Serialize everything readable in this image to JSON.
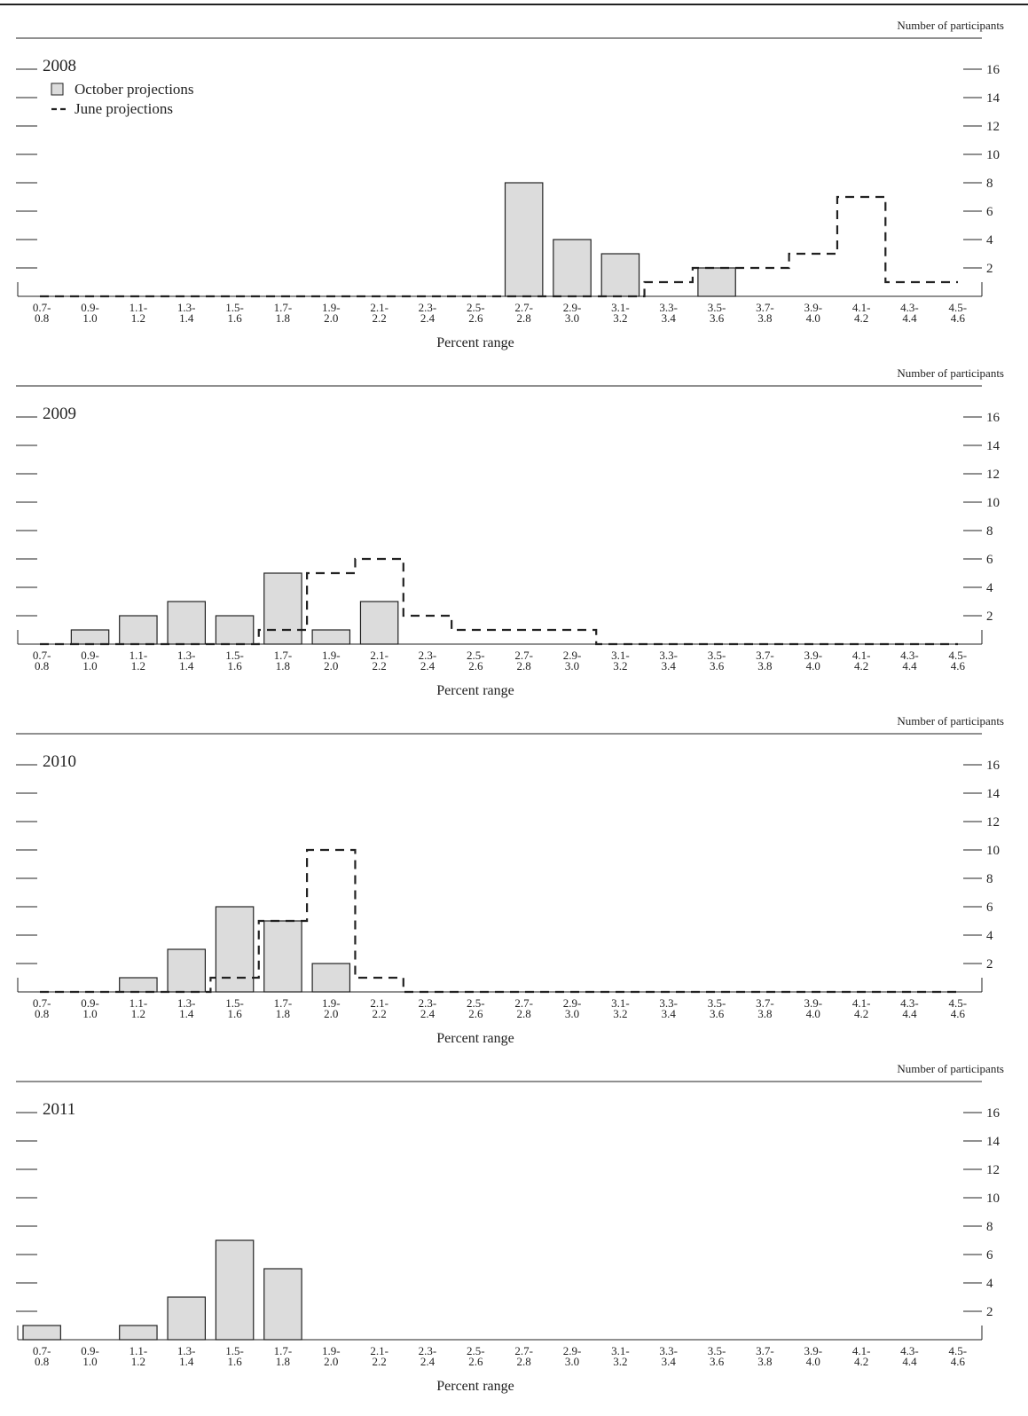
{
  "page": {
    "panel_header": "Number of participants",
    "legend": {
      "october": "October projections",
      "june": "June projections"
    }
  },
  "colors": {
    "bar_fill": "#dcdcdc",
    "bar_stroke": "#222222",
    "line": "#222222"
  },
  "chart_data": [
    {
      "type": "bar",
      "title": "2008",
      "xlabel": "Percent range",
      "ylabel": "Number of participants",
      "ylim": [
        0,
        16
      ],
      "yticks": [
        2,
        4,
        6,
        8,
        10,
        12,
        14,
        16
      ],
      "categories": [
        "0.7-0.8",
        "0.9-1.0",
        "1.1-1.2",
        "1.3-1.4",
        "1.5-1.6",
        "1.7-1.8",
        "1.9-2.0",
        "2.1-2.2",
        "2.3-2.4",
        "2.5-2.6",
        "2.7-2.8",
        "2.9-3.0",
        "3.1-3.2",
        "3.3-3.4",
        "3.5-3.6",
        "3.7-3.8",
        "3.9-4.0",
        "4.1-4.2",
        "4.3-4.4",
        "4.5-4.6"
      ],
      "series": [
        {
          "name": "October projections",
          "style": "bar",
          "values": [
            0,
            0,
            0,
            0,
            0,
            0,
            0,
            0,
            0,
            0,
            8,
            4,
            3,
            0,
            2,
            0,
            0,
            0,
            0,
            0
          ]
        },
        {
          "name": "June projections",
          "style": "dashed-step",
          "values": [
            0,
            0,
            0,
            0,
            0,
            0,
            0,
            0,
            0,
            0,
            0,
            0,
            0,
            1,
            2,
            2,
            3,
            7,
            1,
            1
          ]
        }
      ],
      "legend": "top-left"
    },
    {
      "type": "bar",
      "title": "2009",
      "xlabel": "Percent range",
      "ylabel": "Number of participants",
      "ylim": [
        0,
        16
      ],
      "yticks": [
        2,
        4,
        6,
        8,
        10,
        12,
        14,
        16
      ],
      "categories": [
        "0.7-0.8",
        "0.9-1.0",
        "1.1-1.2",
        "1.3-1.4",
        "1.5-1.6",
        "1.7-1.8",
        "1.9-2.0",
        "2.1-2.2",
        "2.3-2.4",
        "2.5-2.6",
        "2.7-2.8",
        "2.9-3.0",
        "3.1-3.2",
        "3.3-3.4",
        "3.5-3.6",
        "3.7-3.8",
        "3.9-4.0",
        "4.1-4.2",
        "4.3-4.4",
        "4.5-4.6"
      ],
      "series": [
        {
          "name": "October projections",
          "style": "bar",
          "values": [
            0,
            1,
            2,
            3,
            2,
            5,
            1,
            3,
            0,
            0,
            0,
            0,
            0,
            0,
            0,
            0,
            0,
            0,
            0,
            0
          ]
        },
        {
          "name": "June projections",
          "style": "dashed-step",
          "values": [
            0,
            0,
            0,
            0,
            0,
            1,
            5,
            6,
            2,
            1,
            1,
            1,
            0,
            0,
            0,
            0,
            0,
            0,
            0,
            0
          ]
        }
      ]
    },
    {
      "type": "bar",
      "title": "2010",
      "xlabel": "Percent range",
      "ylabel": "Number of participants",
      "ylim": [
        0,
        16
      ],
      "yticks": [
        2,
        4,
        6,
        8,
        10,
        12,
        14,
        16
      ],
      "categories": [
        "0.7-0.8",
        "0.9-1.0",
        "1.1-1.2",
        "1.3-1.4",
        "1.5-1.6",
        "1.7-1.8",
        "1.9-2.0",
        "2.1-2.2",
        "2.3-2.4",
        "2.5-2.6",
        "2.7-2.8",
        "2.9-3.0",
        "3.1-3.2",
        "3.3-3.4",
        "3.5-3.6",
        "3.7-3.8",
        "3.9-4.0",
        "4.1-4.2",
        "4.3-4.4",
        "4.5-4.6"
      ],
      "series": [
        {
          "name": "October projections",
          "style": "bar",
          "values": [
            0,
            0,
            1,
            3,
            6,
            5,
            2,
            0,
            0,
            0,
            0,
            0,
            0,
            0,
            0,
            0,
            0,
            0,
            0,
            0
          ]
        },
        {
          "name": "June projections",
          "style": "dashed-step",
          "values": [
            0,
            0,
            0,
            0,
            1,
            5,
            10,
            1,
            0,
            0,
            0,
            0,
            0,
            0,
            0,
            0,
            0,
            0,
            0,
            0
          ]
        }
      ]
    },
    {
      "type": "bar",
      "title": "2011",
      "xlabel": "Percent range",
      "ylabel": "Number of participants",
      "ylim": [
        0,
        16
      ],
      "yticks": [
        2,
        4,
        6,
        8,
        10,
        12,
        14,
        16
      ],
      "categories": [
        "0.7-0.8",
        "0.9-1.0",
        "1.1-1.2",
        "1.3-1.4",
        "1.5-1.6",
        "1.7-1.8",
        "1.9-2.0",
        "2.1-2.2",
        "2.3-2.4",
        "2.5-2.6",
        "2.7-2.8",
        "2.9-3.0",
        "3.1-3.2",
        "3.3-3.4",
        "3.5-3.6",
        "3.7-3.8",
        "3.9-4.0",
        "4.1-4.2",
        "4.3-4.4",
        "4.5-4.6"
      ],
      "series": [
        {
          "name": "October projections",
          "style": "bar",
          "values": [
            1,
            0,
            1,
            3,
            7,
            5,
            0,
            0,
            0,
            0,
            0,
            0,
            0,
            0,
            0,
            0,
            0,
            0,
            0,
            0
          ]
        }
      ]
    }
  ]
}
